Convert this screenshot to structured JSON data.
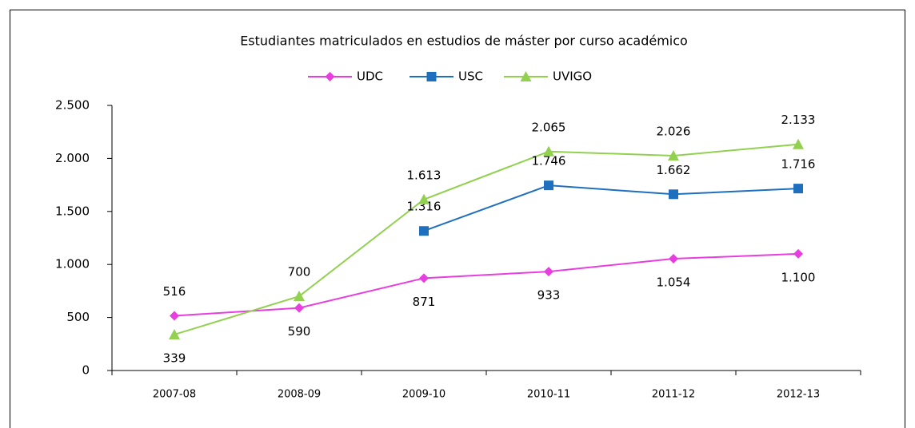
{
  "chart_data": {
    "type": "line",
    "title": "Estudiantes matriculados  en estudios de máster por curso académico",
    "categories": [
      "2007-08",
      "2008-09",
      "2009-10",
      "2010-11",
      "2011-12",
      "2012-13"
    ],
    "series": [
      {
        "name": "UDC",
        "color": "#e83ee0",
        "marker": "diamond",
        "values": [
          516,
          590,
          871,
          933,
          1054,
          1100
        ],
        "value_labels": [
          "516",
          "590",
          "871",
          "933",
          "1.054",
          "1.100"
        ]
      },
      {
        "name": "USC",
        "color": "#1f6fbf",
        "marker": "square",
        "values": [
          null,
          null,
          1316,
          1746,
          1662,
          1716
        ],
        "value_labels": [
          null,
          null,
          "1.316",
          "1.746",
          "1.662",
          "1.716"
        ]
      },
      {
        "name": "UVIGO",
        "color": "#92d050",
        "marker": "triangle",
        "values": [
          339,
          700,
          1613,
          2065,
          2026,
          2133
        ],
        "value_labels": [
          "339",
          "700",
          "1.613",
          "2.065",
          "2.026",
          "2.133"
        ]
      }
    ],
    "ylim": [
      0,
      2500
    ],
    "yticks": [
      0,
      500,
      {
        "value": 1000,
        "label": "1.000"
      },
      {
        "value": 1500,
        "label": "1.500"
      },
      {
        "value": 2000,
        "label": "2.000"
      },
      {
        "value": 2500,
        "label": "2.500"
      }
    ],
    "grid": false,
    "legend": "top"
  }
}
